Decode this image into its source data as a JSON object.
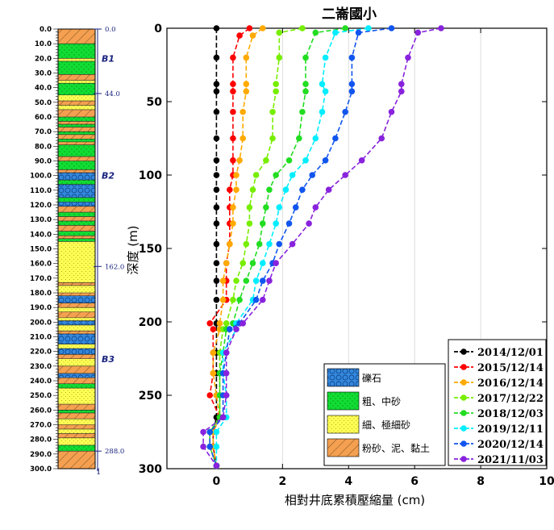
{
  "chart_data": {
    "type": "line",
    "title": "二崙國小",
    "xlabel": "相對井底累積壓縮量 (cm)",
    "ylabel": "深度 (m)",
    "xlim": [
      -1.5,
      10
    ],
    "ylim": [
      300,
      0
    ],
    "x_ticks": [
      0,
      2,
      4,
      6,
      8,
      10
    ],
    "y_ticks": [
      0,
      50,
      100,
      150,
      200,
      250,
      300
    ],
    "grid": "vertical",
    "legend_position": "bottom-right",
    "series": [
      {
        "name": "2014/12/01",
        "color": "#000000",
        "points": [
          [
            0,
            0
          ],
          [
            0,
            20
          ],
          [
            0,
            38
          ],
          [
            0,
            43
          ],
          [
            0,
            57
          ],
          [
            0,
            75
          ],
          [
            0,
            90
          ],
          [
            0,
            100
          ],
          [
            0,
            110
          ],
          [
            0,
            122
          ],
          [
            0,
            133
          ],
          [
            0,
            147
          ],
          [
            0,
            160
          ],
          [
            0,
            172
          ],
          [
            0,
            185
          ],
          [
            0,
            201
          ],
          [
            0,
            221
          ],
          [
            0,
            235
          ],
          [
            0,
            250
          ],
          [
            0,
            265
          ],
          [
            -0.1,
            275
          ],
          [
            -0.1,
            285
          ],
          [
            0,
            298
          ]
        ]
      },
      {
        "name": "2015/12/14",
        "color": "#ff0000",
        "points": [
          [
            1.0,
            0
          ],
          [
            0.7,
            5
          ],
          [
            0.5,
            20
          ],
          [
            0.5,
            38
          ],
          [
            0.5,
            43
          ],
          [
            0.5,
            57
          ],
          [
            0.5,
            75
          ],
          [
            0.5,
            90
          ],
          [
            0.5,
            100
          ],
          [
            0.4,
            110
          ],
          [
            0.4,
            122
          ],
          [
            0.4,
            133
          ],
          [
            0.4,
            147
          ],
          [
            0.3,
            160
          ],
          [
            0.3,
            172
          ],
          [
            0.3,
            185
          ],
          [
            -0.2,
            201
          ],
          [
            -0.1,
            205
          ],
          [
            -0.1,
            221
          ],
          [
            -0.1,
            235
          ],
          [
            -0.2,
            250
          ],
          [
            0.1,
            265
          ],
          [
            -0.1,
            275
          ],
          [
            -0.1,
            285
          ],
          [
            0,
            298
          ]
        ]
      },
      {
        "name": "2016/12/14",
        "color": "#ffaa00",
        "points": [
          [
            1.4,
            0
          ],
          [
            1.1,
            5
          ],
          [
            0.9,
            20
          ],
          [
            0.9,
            38
          ],
          [
            0.9,
            43
          ],
          [
            0.8,
            57
          ],
          [
            0.8,
            75
          ],
          [
            0.7,
            90
          ],
          [
            0.6,
            100
          ],
          [
            0.6,
            110
          ],
          [
            0.5,
            122
          ],
          [
            0.5,
            133
          ],
          [
            0.4,
            147
          ],
          [
            0.3,
            160
          ],
          [
            0.2,
            172
          ],
          [
            0.2,
            185
          ],
          [
            0.1,
            201
          ],
          [
            0.1,
            205
          ],
          [
            -0.1,
            221
          ],
          [
            -0.1,
            235
          ],
          [
            0.0,
            250
          ],
          [
            0.1,
            265
          ],
          [
            -0.1,
            275
          ],
          [
            -0.1,
            285
          ],
          [
            0,
            298
          ]
        ]
      },
      {
        "name": "2017/12/22",
        "color": "#77ee00",
        "points": [
          [
            2.6,
            0
          ],
          [
            1.9,
            3
          ],
          [
            1.9,
            20
          ],
          [
            1.8,
            38
          ],
          [
            1.8,
            43
          ],
          [
            1.7,
            57
          ],
          [
            1.7,
            75
          ],
          [
            1.5,
            90
          ],
          [
            1.2,
            100
          ],
          [
            1.1,
            110
          ],
          [
            1.0,
            122
          ],
          [
            1.0,
            133
          ],
          [
            0.9,
            147
          ],
          [
            0.8,
            160
          ],
          [
            0.6,
            172
          ],
          [
            0.5,
            185
          ],
          [
            0.3,
            201
          ],
          [
            0.2,
            205
          ],
          [
            0.1,
            221
          ],
          [
            0.1,
            235
          ],
          [
            0.1,
            250
          ],
          [
            0.1,
            265
          ],
          [
            -0.2,
            275
          ],
          [
            -0.2,
            285
          ],
          [
            0,
            298
          ]
        ]
      },
      {
        "name": "2018/12/03",
        "color": "#22dd22",
        "points": [
          [
            3.9,
            0
          ],
          [
            3.0,
            3
          ],
          [
            2.7,
            20
          ],
          [
            2.7,
            38
          ],
          [
            2.7,
            43
          ],
          [
            2.6,
            57
          ],
          [
            2.5,
            75
          ],
          [
            2.2,
            90
          ],
          [
            1.8,
            100
          ],
          [
            1.6,
            110
          ],
          [
            1.5,
            122
          ],
          [
            1.4,
            133
          ],
          [
            1.3,
            147
          ],
          [
            1.1,
            160
          ],
          [
            0.9,
            172
          ],
          [
            0.7,
            185
          ],
          [
            0.5,
            201
          ],
          [
            0.3,
            205
          ],
          [
            0.2,
            221
          ],
          [
            0.1,
            235
          ],
          [
            0.1,
            250
          ],
          [
            0.1,
            265
          ],
          [
            -0.2,
            275
          ],
          [
            -0.2,
            285
          ],
          [
            0,
            298
          ]
        ]
      },
      {
        "name": "2019/12/11",
        "color": "#00eeff",
        "points": [
          [
            4.6,
            0
          ],
          [
            3.6,
            3
          ],
          [
            3.3,
            20
          ],
          [
            3.2,
            38
          ],
          [
            3.3,
            43
          ],
          [
            3.2,
            57
          ],
          [
            3.0,
            75
          ],
          [
            2.7,
            90
          ],
          [
            2.3,
            100
          ],
          [
            2.1,
            110
          ],
          [
            1.9,
            122
          ],
          [
            1.8,
            133
          ],
          [
            1.6,
            147
          ],
          [
            1.4,
            160
          ],
          [
            1.2,
            172
          ],
          [
            1.1,
            185
          ],
          [
            0.6,
            201
          ],
          [
            0.6,
            205
          ],
          [
            0.2,
            221
          ],
          [
            0.2,
            235
          ],
          [
            0.3,
            250
          ],
          [
            0.3,
            265
          ],
          [
            0.0,
            275
          ],
          [
            0.0,
            285
          ],
          [
            0,
            298
          ]
        ]
      },
      {
        "name": "2020/12/14",
        "color": "#1155ee",
        "points": [
          [
            5.3,
            0
          ],
          [
            4.3,
            3
          ],
          [
            4.1,
            20
          ],
          [
            4.1,
            38
          ],
          [
            4.1,
            43
          ],
          [
            3.9,
            57
          ],
          [
            3.6,
            75
          ],
          [
            3.3,
            90
          ],
          [
            2.9,
            100
          ],
          [
            2.6,
            110
          ],
          [
            2.4,
            122
          ],
          [
            2.2,
            133
          ],
          [
            1.9,
            147
          ],
          [
            1.7,
            160
          ],
          [
            1.4,
            172
          ],
          [
            1.2,
            185
          ],
          [
            0.7,
            201
          ],
          [
            0.4,
            205
          ],
          [
            0.3,
            221
          ],
          [
            0.2,
            235
          ],
          [
            0.2,
            250
          ],
          [
            0.2,
            265
          ],
          [
            -0.2,
            275
          ],
          [
            -0.2,
            285
          ],
          [
            0,
            298
          ]
        ]
      },
      {
        "name": "2021/11/03",
        "color": "#8822dd",
        "points": [
          [
            6.8,
            0
          ],
          [
            6.1,
            3
          ],
          [
            5.8,
            20
          ],
          [
            5.6,
            38
          ],
          [
            5.6,
            43
          ],
          [
            5.3,
            57
          ],
          [
            5.0,
            75
          ],
          [
            4.4,
            90
          ],
          [
            3.9,
            100
          ],
          [
            3.4,
            110
          ],
          [
            3.0,
            122
          ],
          [
            2.8,
            133
          ],
          [
            2.3,
            147
          ],
          [
            1.8,
            160
          ],
          [
            1.6,
            172
          ],
          [
            1.4,
            185
          ],
          [
            0.8,
            201
          ],
          [
            0.6,
            205
          ],
          [
            0.3,
            221
          ],
          [
            0.3,
            235
          ],
          [
            0.3,
            250
          ],
          [
            0.2,
            265
          ],
          [
            -0.4,
            275
          ],
          [
            -0.4,
            285
          ],
          [
            0,
            298
          ]
        ]
      }
    ]
  },
  "borehole": {
    "depth_ticks": [
      "0.0",
      "10.0",
      "20.0",
      "30.0",
      "40.0",
      "50.0",
      "60.0",
      "70.0",
      "80.0",
      "90.0",
      "100.0",
      "110.0",
      "120.0",
      "130.0",
      "140.0",
      "150.0",
      "160.0",
      "170.0",
      "180.0",
      "190.0",
      "200.0",
      "210.0",
      "220.0",
      "230.0",
      "240.0",
      "250.0",
      "260.0",
      "270.0",
      "280.0",
      "290.0",
      "300.0"
    ],
    "markers": [
      {
        "label": "0.0",
        "depth": 0
      },
      {
        "label": "44.0",
        "depth": 44
      },
      {
        "label": "162.0",
        "depth": 162
      },
      {
        "label": "288.0",
        "depth": 288
      }
    ],
    "aquifers": [
      {
        "label": "B1",
        "depth": 20
      },
      {
        "label": "B2",
        "depth": 100
      },
      {
        "label": "B3",
        "depth": 225
      }
    ],
    "bottom_label": "1",
    "layers": [
      {
        "top": 0,
        "bottom": 10,
        "type": "clay"
      },
      {
        "top": 10,
        "bottom": 20,
        "type": "sand"
      },
      {
        "top": 20,
        "bottom": 22,
        "type": "fine"
      },
      {
        "top": 22,
        "bottom": 31,
        "type": "sand"
      },
      {
        "top": 31,
        "bottom": 35,
        "type": "clay"
      },
      {
        "top": 35,
        "bottom": 37,
        "type": "fine"
      },
      {
        "top": 37,
        "bottom": 45,
        "type": "sand"
      },
      {
        "top": 45,
        "bottom": 49,
        "type": "fine"
      },
      {
        "top": 49,
        "bottom": 52,
        "type": "clay"
      },
      {
        "top": 52,
        "bottom": 55,
        "type": "fine"
      },
      {
        "top": 55,
        "bottom": 60,
        "type": "clay"
      },
      {
        "top": 60,
        "bottom": 63,
        "type": "sand"
      },
      {
        "top": 63,
        "bottom": 65,
        "type": "clay"
      },
      {
        "top": 65,
        "bottom": 67,
        "type": "sand"
      },
      {
        "top": 67,
        "bottom": 70,
        "type": "clay"
      },
      {
        "top": 70,
        "bottom": 72,
        "type": "sand"
      },
      {
        "top": 72,
        "bottom": 75,
        "type": "clay"
      },
      {
        "top": 75,
        "bottom": 77,
        "type": "sand"
      },
      {
        "top": 77,
        "bottom": 79,
        "type": "clay"
      },
      {
        "top": 79,
        "bottom": 87,
        "type": "sand"
      },
      {
        "top": 87,
        "bottom": 90,
        "type": "clay"
      },
      {
        "top": 90,
        "bottom": 96,
        "type": "sand"
      },
      {
        "top": 96,
        "bottom": 98,
        "type": "clay"
      },
      {
        "top": 98,
        "bottom": 103,
        "type": "gravel"
      },
      {
        "top": 103,
        "bottom": 106,
        "type": "sand"
      },
      {
        "top": 106,
        "bottom": 115,
        "type": "gravel"
      },
      {
        "top": 115,
        "bottom": 118,
        "type": "sand"
      },
      {
        "top": 118,
        "bottom": 121,
        "type": "gravel"
      },
      {
        "top": 121,
        "bottom": 125,
        "type": "clay"
      },
      {
        "top": 125,
        "bottom": 128,
        "type": "sand"
      },
      {
        "top": 128,
        "bottom": 131,
        "type": "clay"
      },
      {
        "top": 131,
        "bottom": 134,
        "type": "sand"
      },
      {
        "top": 134,
        "bottom": 138,
        "type": "clay"
      },
      {
        "top": 138,
        "bottom": 141,
        "type": "sand"
      },
      {
        "top": 141,
        "bottom": 143,
        "type": "clay"
      },
      {
        "top": 143,
        "bottom": 145,
        "type": "sand"
      },
      {
        "top": 145,
        "bottom": 173,
        "type": "fine"
      },
      {
        "top": 173,
        "bottom": 175,
        "type": "clay"
      },
      {
        "top": 175,
        "bottom": 180,
        "type": "fine"
      },
      {
        "top": 180,
        "bottom": 182,
        "type": "clay"
      },
      {
        "top": 182,
        "bottom": 187,
        "type": "gravel"
      },
      {
        "top": 187,
        "bottom": 190,
        "type": "clay"
      },
      {
        "top": 190,
        "bottom": 193,
        "type": "fine"
      },
      {
        "top": 193,
        "bottom": 197,
        "type": "clay"
      },
      {
        "top": 197,
        "bottom": 199,
        "type": "fine"
      },
      {
        "top": 199,
        "bottom": 202,
        "type": "gravel"
      },
      {
        "top": 202,
        "bottom": 206,
        "type": "fine"
      },
      {
        "top": 206,
        "bottom": 208,
        "type": "clay"
      },
      {
        "top": 208,
        "bottom": 215,
        "type": "gravel"
      },
      {
        "top": 215,
        "bottom": 218,
        "type": "fine"
      },
      {
        "top": 218,
        "bottom": 222,
        "type": "gravel"
      },
      {
        "top": 222,
        "bottom": 225,
        "type": "clay"
      },
      {
        "top": 225,
        "bottom": 230,
        "type": "fine"
      },
      {
        "top": 230,
        "bottom": 235,
        "type": "clay"
      },
      {
        "top": 235,
        "bottom": 238,
        "type": "gravel"
      },
      {
        "top": 238,
        "bottom": 242,
        "type": "clay"
      },
      {
        "top": 242,
        "bottom": 245,
        "type": "sand"
      },
      {
        "top": 245,
        "bottom": 256,
        "type": "fine"
      },
      {
        "top": 256,
        "bottom": 260,
        "type": "clay"
      },
      {
        "top": 260,
        "bottom": 262,
        "type": "sand"
      },
      {
        "top": 262,
        "bottom": 266,
        "type": "clay"
      },
      {
        "top": 266,
        "bottom": 270,
        "type": "fine"
      },
      {
        "top": 270,
        "bottom": 273,
        "type": "clay"
      },
      {
        "top": 273,
        "bottom": 276,
        "type": "fine"
      },
      {
        "top": 276,
        "bottom": 279,
        "type": "clay"
      },
      {
        "top": 279,
        "bottom": 284,
        "type": "fine"
      },
      {
        "top": 284,
        "bottom": 288,
        "type": "sand"
      },
      {
        "top": 288,
        "bottom": 300,
        "type": "clay"
      }
    ]
  },
  "soil_legend": [
    {
      "type": "gravel",
      "label": "礫石"
    },
    {
      "type": "sand",
      "label": "粗、中砂"
    },
    {
      "type": "fine",
      "label": "細、極細砂"
    },
    {
      "type": "clay",
      "label": "粉砂、泥、黏土"
    }
  ],
  "colors": {
    "gravel": "#3388dd",
    "sand": "#11dd33",
    "fine": "#ffff55",
    "clay": "#f4a050",
    "accent_navy": "#1a237e"
  }
}
